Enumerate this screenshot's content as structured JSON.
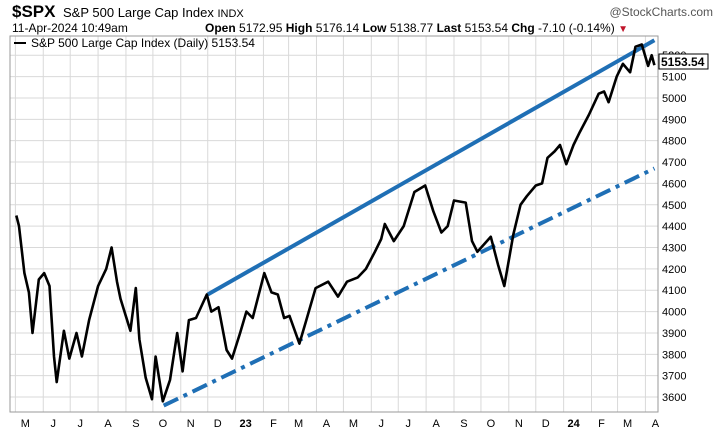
{
  "header": {
    "symbol": "$SPX",
    "name": "S&P 500 Large Cap Index",
    "exchange": "INDX",
    "brand": "@StockCharts.com",
    "date": "11-Apr-2024 10:49am",
    "open_label": "Open",
    "open_value": "5172.95",
    "high_label": "High",
    "high_value": "5176.14",
    "low_label": "Low",
    "low_value": "5138.77",
    "last_label": "Last",
    "last_value": "5153.54",
    "chg_label": "Chg",
    "chg_value": "-7.10 (-0.14%)",
    "down_arrow": "▼"
  },
  "legend": {
    "text": "S&P 500 Large Cap Index (Daily) 5153.54"
  },
  "last_price_tag": "5153.54",
  "colors": {
    "price_line": "#000000",
    "trendline": "#1f6fb5",
    "grid": "#d9d9d9",
    "tag_bg": "#ffffff",
    "down": "#c0142a"
  },
  "chart_data": {
    "type": "line",
    "series": [
      {
        "name": "S&P 500 Large Cap Index (Daily)",
        "values": [
          [
            "2022-05-02",
            4450
          ],
          [
            "2022-05-05",
            4400
          ],
          [
            "2022-05-11",
            4180
          ],
          [
            "2022-05-16",
            4090
          ],
          [
            "2022-05-20",
            3900
          ],
          [
            "2022-05-27",
            4150
          ],
          [
            "2022-06-02",
            4180
          ],
          [
            "2022-06-08",
            4120
          ],
          [
            "2022-06-13",
            3790
          ],
          [
            "2022-06-16",
            3670
          ],
          [
            "2022-06-24",
            3910
          ],
          [
            "2022-06-30",
            3780
          ],
          [
            "2022-07-08",
            3900
          ],
          [
            "2022-07-14",
            3790
          ],
          [
            "2022-07-22",
            3960
          ],
          [
            "2022-08-01",
            4120
          ],
          [
            "2022-08-10",
            4200
          ],
          [
            "2022-08-16",
            4300
          ],
          [
            "2022-08-22",
            4140
          ],
          [
            "2022-08-26",
            4060
          ],
          [
            "2022-09-06",
            3910
          ],
          [
            "2022-09-12",
            4110
          ],
          [
            "2022-09-16",
            3870
          ],
          [
            "2022-09-23",
            3690
          ],
          [
            "2022-09-30",
            3590
          ],
          [
            "2022-10-04",
            3790
          ],
          [
            "2022-10-12",
            3580
          ],
          [
            "2022-10-20",
            3680
          ],
          [
            "2022-10-28",
            3900
          ],
          [
            "2022-11-03",
            3720
          ],
          [
            "2022-11-10",
            3960
          ],
          [
            "2022-11-18",
            3970
          ],
          [
            "2022-11-30",
            4080
          ],
          [
            "2022-12-05",
            4000
          ],
          [
            "2022-12-13",
            4020
          ],
          [
            "2022-12-22",
            3820
          ],
          [
            "2022-12-28",
            3780
          ],
          [
            "2023-01-06",
            3900
          ],
          [
            "2023-01-13",
            4000
          ],
          [
            "2023-01-20",
            3970
          ],
          [
            "2023-02-02",
            4180
          ],
          [
            "2023-02-10",
            4090
          ],
          [
            "2023-02-17",
            4080
          ],
          [
            "2023-02-24",
            3970
          ],
          [
            "2023-03-02",
            3980
          ],
          [
            "2023-03-13",
            3850
          ],
          [
            "2023-03-20",
            3950
          ],
          [
            "2023-03-31",
            4110
          ],
          [
            "2023-04-14",
            4140
          ],
          [
            "2023-04-25",
            4070
          ],
          [
            "2023-05-05",
            4140
          ],
          [
            "2023-05-17",
            4160
          ],
          [
            "2023-05-26",
            4200
          ],
          [
            "2023-06-05",
            4280
          ],
          [
            "2023-06-12",
            4340
          ],
          [
            "2023-06-16",
            4410
          ],
          [
            "2023-06-26",
            4330
          ],
          [
            "2023-07-07",
            4400
          ],
          [
            "2023-07-19",
            4560
          ],
          [
            "2023-07-31",
            4590
          ],
          [
            "2023-08-09",
            4470
          ],
          [
            "2023-08-18",
            4370
          ],
          [
            "2023-08-25",
            4400
          ],
          [
            "2023-09-01",
            4520
          ],
          [
            "2023-09-14",
            4510
          ],
          [
            "2023-09-21",
            4330
          ],
          [
            "2023-09-27",
            4280
          ],
          [
            "2023-10-12",
            4350
          ],
          [
            "2023-10-20",
            4220
          ],
          [
            "2023-10-27",
            4120
          ],
          [
            "2023-11-06",
            4360
          ],
          [
            "2023-11-14",
            4500
          ],
          [
            "2023-11-21",
            4540
          ],
          [
            "2023-12-01",
            4590
          ],
          [
            "2023-12-08",
            4600
          ],
          [
            "2023-12-14",
            4720
          ],
          [
            "2023-12-22",
            4750
          ],
          [
            "2023-12-28",
            4780
          ],
          [
            "2024-01-04",
            4690
          ],
          [
            "2024-01-12",
            4780
          ],
          [
            "2024-01-19",
            4840
          ],
          [
            "2024-01-29",
            4920
          ],
          [
            "2024-02-09",
            5020
          ],
          [
            "2024-02-15",
            5030
          ],
          [
            "2024-02-20",
            4980
          ],
          [
            "2024-02-29",
            5100
          ],
          [
            "2024-03-07",
            5160
          ],
          [
            "2024-03-15",
            5120
          ],
          [
            "2024-03-21",
            5240
          ],
          [
            "2024-03-28",
            5250
          ],
          [
            "2024-04-04",
            5150
          ],
          [
            "2024-04-08",
            5200
          ],
          [
            "2024-04-11",
            5153.54
          ]
        ]
      }
    ],
    "trendlines": [
      {
        "style": "solid",
        "from": [
          "2022-12-01",
          4080
        ],
        "to": [
          "2024-04-11",
          5270
        ]
      },
      {
        "style": "dash-dot",
        "from": [
          "2022-10-13",
          3560
        ],
        "to": [
          "2024-04-11",
          4670
        ]
      }
    ],
    "y_ticks": [
      3600,
      3700,
      3800,
      3900,
      4000,
      4100,
      4200,
      4300,
      4400,
      4500,
      4600,
      4700,
      4800,
      4900,
      5000,
      5100,
      5200
    ],
    "ylim": [
      3530,
      5290
    ],
    "x_range": [
      "2022-04-25",
      "2024-04-15"
    ],
    "x_ticks": [
      {
        "date": "2022-05-01",
        "label": "M"
      },
      {
        "date": "2022-06-01",
        "label": "J"
      },
      {
        "date": "2022-07-01",
        "label": "J"
      },
      {
        "date": "2022-08-01",
        "label": "A"
      },
      {
        "date": "2022-09-01",
        "label": "S"
      },
      {
        "date": "2022-10-01",
        "label": "O"
      },
      {
        "date": "2022-11-01",
        "label": "N"
      },
      {
        "date": "2022-12-01",
        "label": "D"
      },
      {
        "date": "2023-01-01",
        "label": "23"
      },
      {
        "date": "2023-02-01",
        "label": "F"
      },
      {
        "date": "2023-03-01",
        "label": "M"
      },
      {
        "date": "2023-04-01",
        "label": "A"
      },
      {
        "date": "2023-05-01",
        "label": "M"
      },
      {
        "date": "2023-06-01",
        "label": "J"
      },
      {
        "date": "2023-07-01",
        "label": "J"
      },
      {
        "date": "2023-08-01",
        "label": "A"
      },
      {
        "date": "2023-09-01",
        "label": "S"
      },
      {
        "date": "2023-10-01",
        "label": "O"
      },
      {
        "date": "2023-11-01",
        "label": "N"
      },
      {
        "date": "2023-12-01",
        "label": "D"
      },
      {
        "date": "2024-01-01",
        "label": "24"
      },
      {
        "date": "2024-02-01",
        "label": "F"
      },
      {
        "date": "2024-03-01",
        "label": "M"
      },
      {
        "date": "2024-04-01",
        "label": "A"
      }
    ],
    "grid": true,
    "legend_position": "top-left"
  }
}
